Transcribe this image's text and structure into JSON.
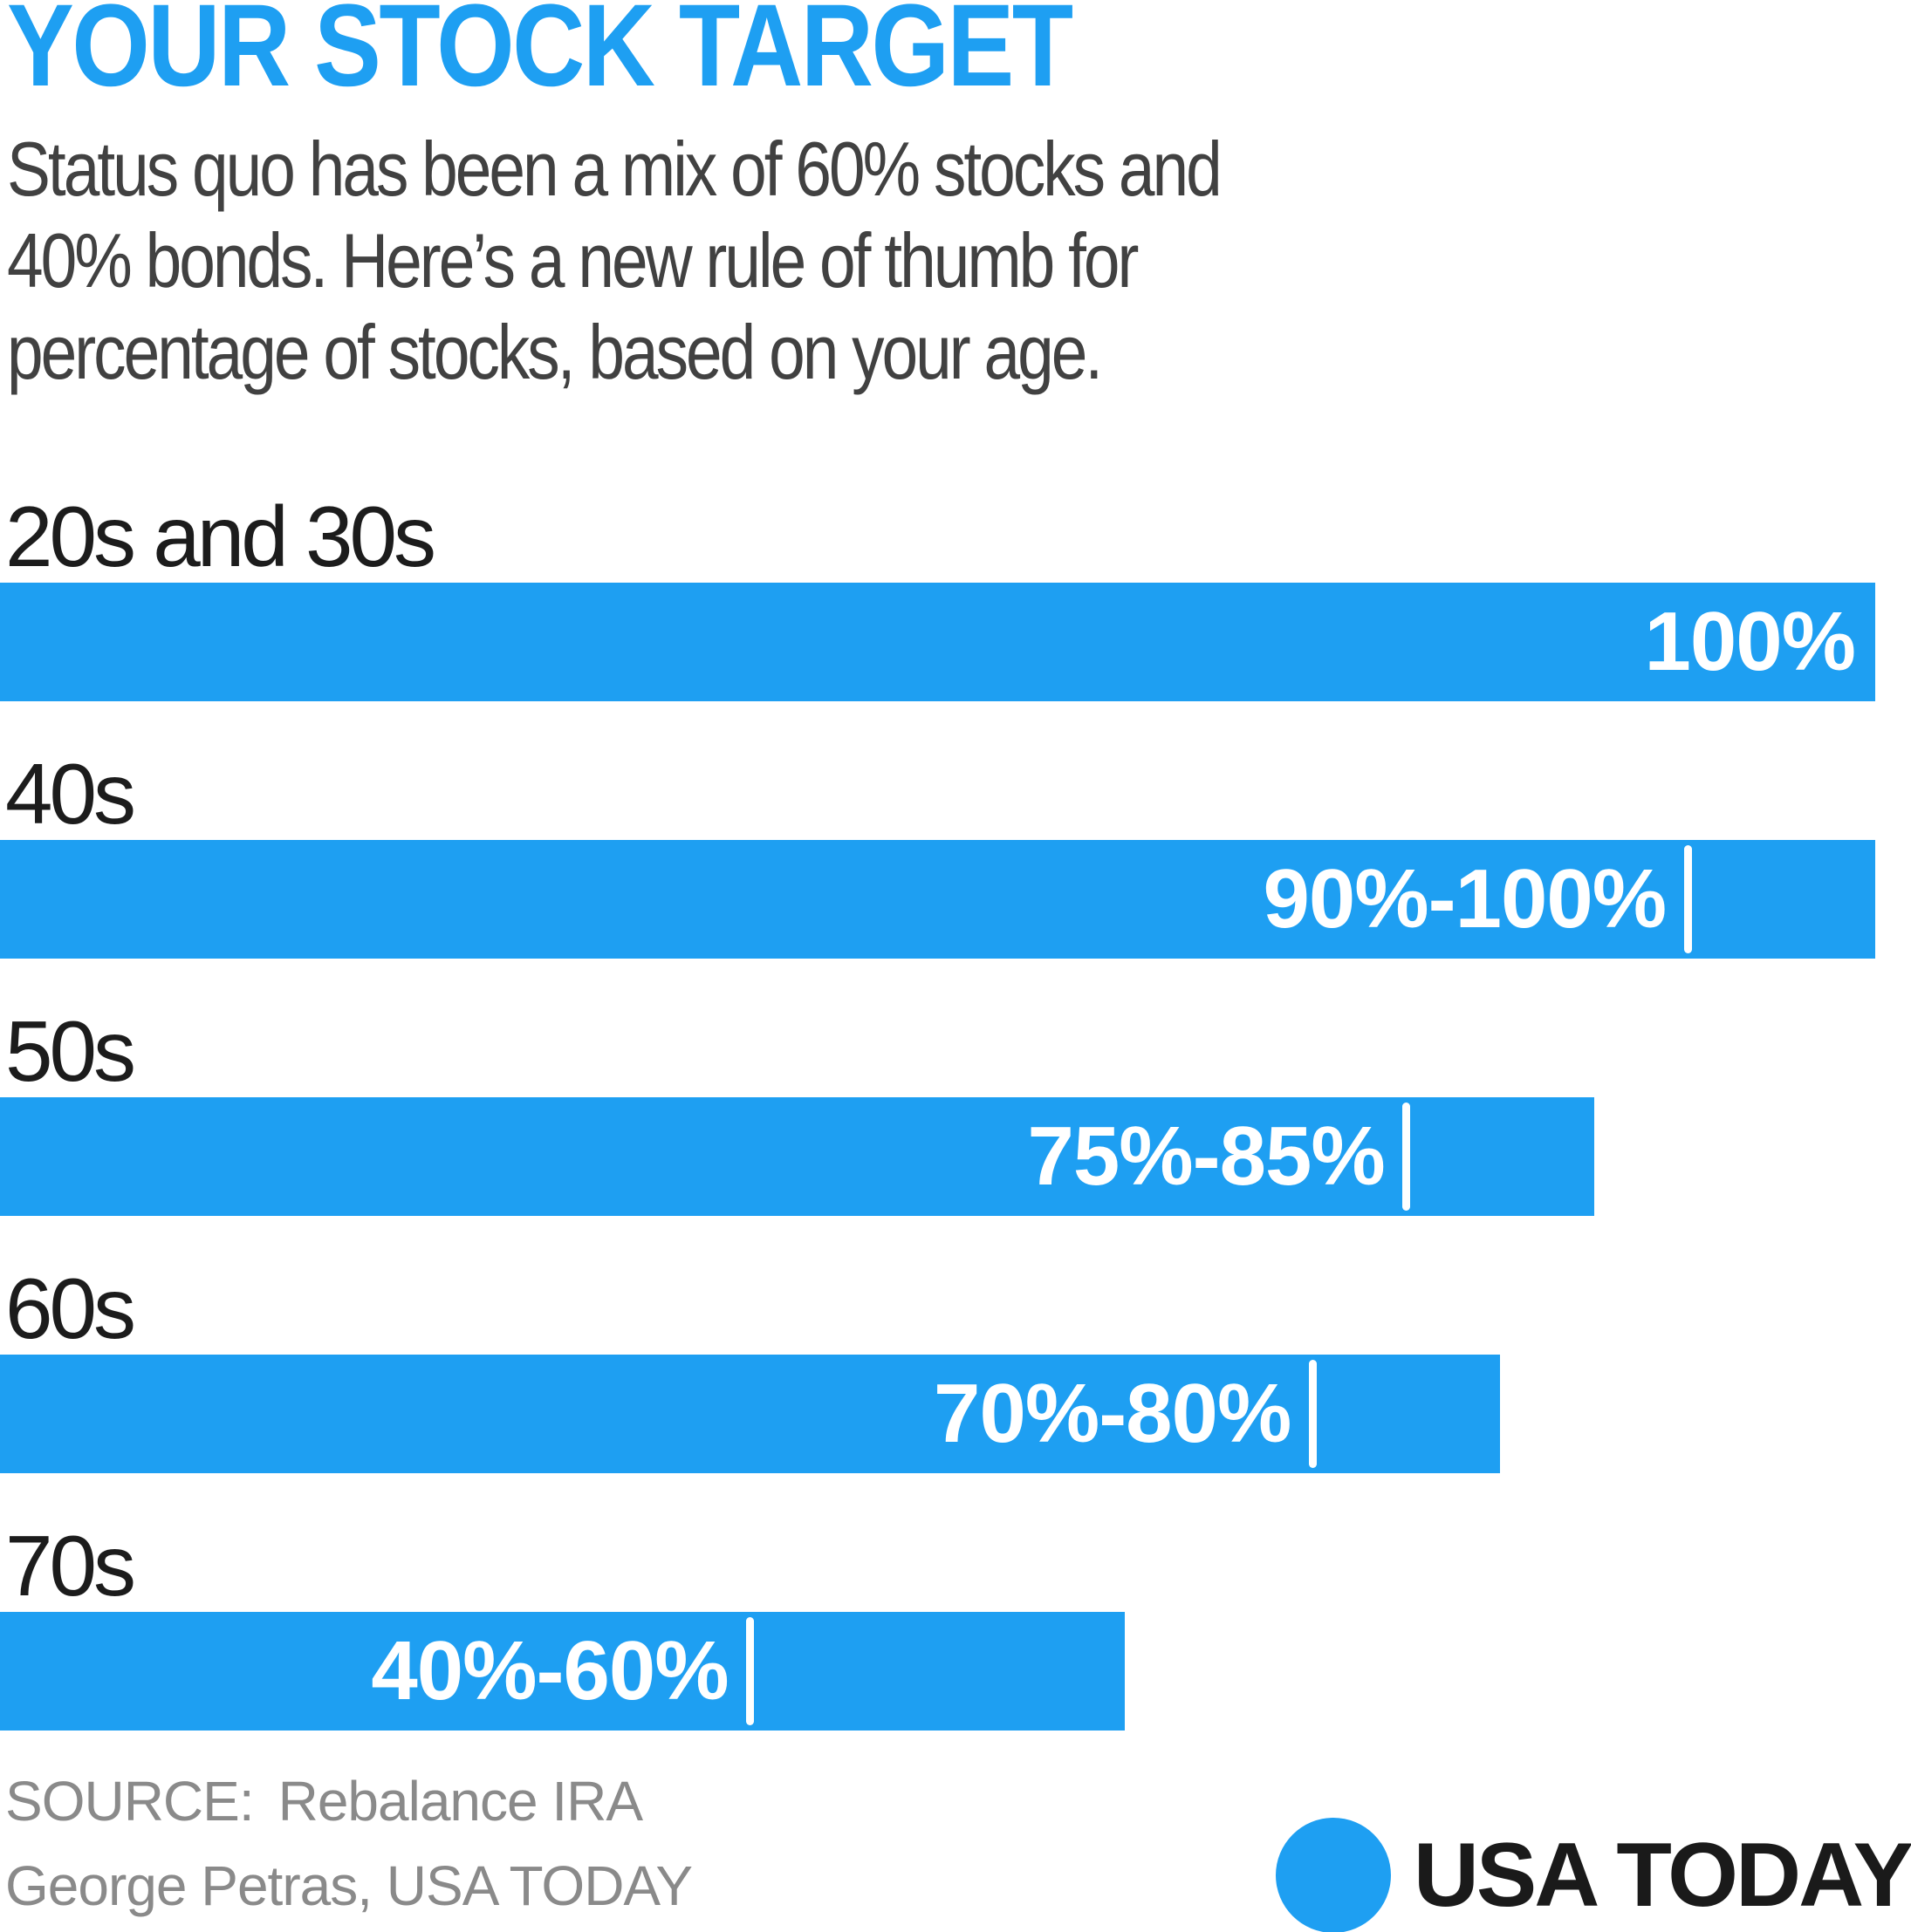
{
  "header": {
    "title": "YOUR STOCK TARGET",
    "subtitle_lines": [
      "Status quo has been a mix of 60% stocks and",
      "40% bonds. Here’s a new rule of thumb for",
      "percentage of stocks, based on your age."
    ]
  },
  "chart_data": {
    "type": "bar",
    "orientation": "horizontal",
    "value_unit": "percent of portfolio in stocks",
    "axis_range": [
      0,
      100
    ],
    "grid": false,
    "legend": false,
    "bar_color": "#1E9FF2",
    "value_text_color": "#FFFFFF",
    "categories": [
      "20s and 30s",
      "40s",
      "50s",
      "60s",
      "70s"
    ],
    "rows": [
      {
        "label": "20s and 30s",
        "value_label": "100%",
        "low": 100,
        "high": 100,
        "tick": false
      },
      {
        "label": "40s",
        "value_label": "90%-100%",
        "low": 90,
        "high": 100,
        "tick": true
      },
      {
        "label": "50s",
        "value_label": "75%-85%",
        "low": 75,
        "high": 85,
        "tick": true
      },
      {
        "label": "60s",
        "value_label": "70%-80%",
        "low": 70,
        "high": 80,
        "tick": true
      },
      {
        "label": "70s",
        "value_label": "40%-60%",
        "low": 40,
        "high": 60,
        "tick": true
      }
    ]
  },
  "footer": {
    "source_label": "SOURCE:",
    "source_value": "Rebalance IRA",
    "credit": "George Petras, USA TODAY",
    "logo": {
      "icon": "usa-today-ball-icon",
      "wordmark": "USA TODAY",
      "ball_color": "#1E9FF2"
    }
  },
  "colors": {
    "accent_blue": "#1E9FF2",
    "title_blue": "#1E9FF2",
    "label_dark": "#1C1C1C",
    "subtitle_gray": "#414141",
    "source_gray": "#8A8A8A",
    "logo_text": "#1A1A1A",
    "background": "#FFFFFF"
  }
}
